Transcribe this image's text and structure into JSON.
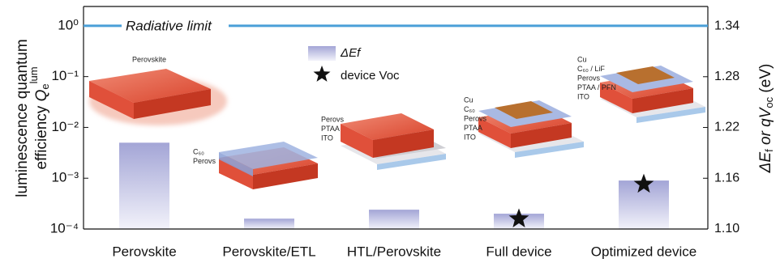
{
  "chart_data": {
    "type": "bar",
    "categories": [
      "Perovskite",
      "Perovskite/ETL",
      "HTL/Perovskite",
      "Full device",
      "Optimized device"
    ],
    "y_scale": "log",
    "ylim": [
      0.0001,
      2.4
    ],
    "yticks": [
      {
        "value": 0.0001,
        "label": "10⁻⁴"
      },
      {
        "value": 0.001,
        "label": "10⁻³"
      },
      {
        "value": 0.01,
        "label": "10⁻²"
      },
      {
        "value": 0.1,
        "label": "10⁻¹"
      },
      {
        "value": 1,
        "label": "10⁰"
      }
    ],
    "y_label": {
      "line1": "luminescence quantum",
      "line2": "efficiency ",
      "symbol": "Q",
      "sub": "e",
      "sup": "lum"
    },
    "y2lim": [
      1.1,
      1.363
    ],
    "y2ticks": [
      {
        "value": 1.1,
        "label": "1.10"
      },
      1.16,
      1.22,
      1.28,
      1.34
    ],
    "y2_label": {
      "a": "ΔE",
      "a_sub": "f",
      "b": " or qV",
      "b_sub": "oc",
      "unit": " (eV)"
    },
    "series": [
      {
        "name": "ΔEf",
        "color": "#a3a5d6",
        "values": [
          0.005,
          0.00016,
          0.00024,
          0.0002,
          0.0009
        ]
      },
      {
        "name": "device Voc",
        "axis": "y2",
        "marker": "star",
        "color": "#111111",
        "values": [
          null,
          null,
          null,
          1.112,
          1.153
        ]
      }
    ],
    "reference_line": {
      "value": 1,
      "label": "Radiative limit",
      "color": "#4a9fd8"
    },
    "annotations": [
      [
        "Perovskite"
      ],
      [
        "C₆₀",
        "Perovs"
      ],
      [
        "Perovs",
        "PTAA",
        "ITO"
      ],
      [
        "Cu",
        "C₆₀",
        "Perovs",
        "PTAA",
        "ITO"
      ],
      [
        "Cu",
        "C₆₀ / LiF",
        "Perovs",
        "PTAA / PFN",
        "ITO"
      ]
    ]
  }
}
